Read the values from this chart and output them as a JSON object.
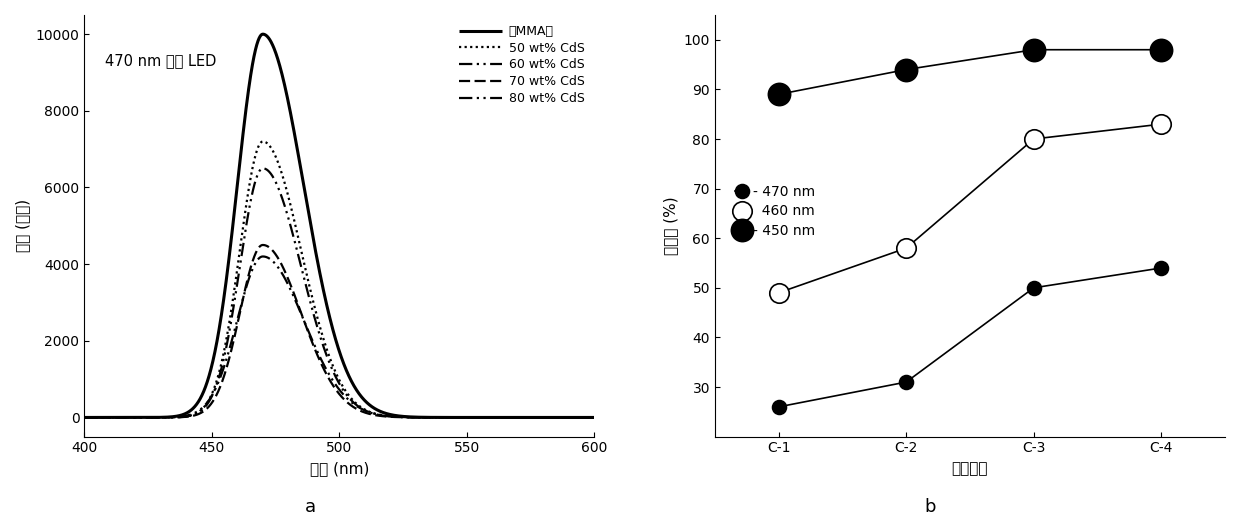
{
  "panel_a": {
    "annotation": "470 nm 蓝光 LED",
    "xlabel": "波长 (nm)",
    "ylabel": "强度 (频数)",
    "xlim": [
      400,
      600
    ],
    "ylim": [
      -500,
      10500
    ],
    "yticks": [
      0,
      2000,
      4000,
      6000,
      8000,
      10000
    ],
    "xticks": [
      400,
      450,
      500,
      550,
      600
    ],
    "peak": 470,
    "curves": [
      {
        "label": "聚MMA膜",
        "linestyle": "solid",
        "linewidth": 2.2,
        "peak_y": 10000,
        "sigma_l": 10,
        "sigma_r": 16
      },
      {
        "label": "50 wt% CdS",
        "linestyle": "densely_dotted",
        "linewidth": 1.6,
        "peak_y": 7200,
        "sigma_l": 9,
        "sigma_r": 15
      },
      {
        "label": "60 wt% CdS",
        "linestyle": "dash_dot_dot",
        "linewidth": 1.6,
        "peak_y": 6500,
        "sigma_l": 9,
        "sigma_r": 15
      },
      {
        "label": "70 wt% CdS",
        "linestyle": "dashed",
        "linewidth": 1.6,
        "peak_y": 4500,
        "sigma_l": 9,
        "sigma_r": 15
      },
      {
        "label": "80 wt% CdS",
        "linestyle": "dashdotdot2",
        "linewidth": 1.6,
        "peak_y": 4200,
        "sigma_l": 10,
        "sigma_r": 16
      }
    ]
  },
  "panel_b": {
    "xlabel": "薄膜类型",
    "ylabel": "阻断率 (%)",
    "xlim": [
      -0.5,
      3.5
    ],
    "ylim": [
      20,
      105
    ],
    "yticks": [
      30,
      40,
      50,
      60,
      70,
      80,
      90,
      100
    ],
    "xtick_labels": [
      "C-1",
      "C-2",
      "C-3",
      "C-4"
    ],
    "series": [
      {
        "label": "470 nm",
        "values": [
          26,
          31,
          50,
          54
        ],
        "markersize": 11,
        "mfc": "black",
        "mec": "black",
        "legend_prefix": "-"
      },
      {
        "label": "460 nm",
        "values": [
          49,
          58,
          80,
          83
        ],
        "markersize": 15,
        "mfc": "white",
        "mec": "black",
        "legend_prefix": ""
      },
      {
        "label": "450 nm",
        "values": [
          89,
          94,
          98,
          98
        ],
        "markersize": 15,
        "mfc": "black",
        "mec": "black",
        "legend_prefix": "-"
      }
    ]
  }
}
